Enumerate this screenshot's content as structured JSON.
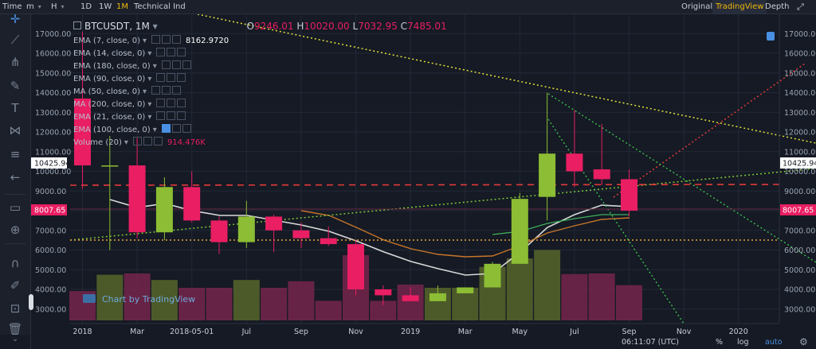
{
  "toolbar": {
    "items": [
      "Time",
      "m",
      "H",
      "1D",
      "1W",
      "1M",
      "Technical Ind"
    ],
    "active": "1M",
    "right": [
      "Original",
      "TradingView",
      "Depth"
    ],
    "right_active": "TradingView"
  },
  "sidebar_icons": [
    "crosshair-icon",
    "trendline-icon",
    "pitchfork-icon",
    "brush-icon",
    "text-icon",
    "pattern-icon",
    "fib-icon",
    "back-arrow-icon",
    "ruler-icon",
    "zoom-icon",
    "magnet-icon",
    "lock-edit-icon",
    "lock-icon",
    "trash-icon"
  ],
  "header": {
    "symbol": "BTCUSDT, 1M",
    "O_label": "O",
    "O": "9246.01",
    "H_label": "H",
    "H": "10020.00",
    "L_label": "L",
    "L": "7032.95",
    "C_label": "C",
    "C": "7485.01"
  },
  "legend": [
    {
      "label": "EMA (7, close, 0)",
      "value": "8162.9720",
      "value_color": "#ffffff"
    },
    {
      "label": "EMA (14, close, 0)",
      "value": ""
    },
    {
      "label": "EMA (180, close, 0)",
      "value": ""
    },
    {
      "label": "EMA (90, close, 0)",
      "value": ""
    },
    {
      "label": "MA (50, close, 0)",
      "value": ""
    },
    {
      "label": "MA (200, close, 0)",
      "value": ""
    },
    {
      "label": "EMA (21, close, 0)",
      "value": ""
    },
    {
      "label": "EMA (100, close, 0)",
      "value": ""
    },
    {
      "label": "Volume (20)",
      "value": "914.476K",
      "value_color": "#e91e63"
    }
  ],
  "watermark": "Chart by TradingView",
  "price_tags": {
    "upper": "10425.94",
    "lower": "8007.65"
  },
  "statusbar": {
    "time": "06:11:07 (UTC)",
    "percent": "%",
    "log": "log",
    "auto": "auto"
  },
  "colors": {
    "up": "#8cbd34",
    "down": "#e91e63",
    "bg": "#151a24",
    "grid": "#222838"
  },
  "chart_data": {
    "type": "candlestick",
    "y_ticks": [
      3000,
      4000,
      5000,
      6000,
      7000,
      8000,
      9000,
      10000,
      11000,
      12000,
      13000,
      14000,
      15000,
      16000,
      17000
    ],
    "x_ticks": [
      "2018",
      "Mar",
      "2018-05-01",
      "Jul",
      "Sep",
      "Nov",
      "2019",
      "Mar",
      "May",
      "Jul",
      "Sep",
      "Nov",
      "2020"
    ],
    "months": [
      "2018-01",
      "2018-02",
      "2018-03",
      "2018-04",
      "2018-05",
      "2018-06",
      "2018-07",
      "2018-08",
      "2018-09",
      "2018-10",
      "2018-11",
      "2018-12",
      "2019-01",
      "2019-02",
      "2019-03",
      "2019-04",
      "2019-05",
      "2019-06",
      "2019-07",
      "2019-08",
      "2019-09"
    ],
    "candles": [
      {
        "o": 13700,
        "h": 17100,
        "l": 9100,
        "c": 10300
      },
      {
        "o": 10300,
        "h": 11800,
        "l": 6000,
        "c": 10300
      },
      {
        "o": 10300,
        "h": 11700,
        "l": 6600,
        "c": 6900
      },
      {
        "o": 6900,
        "h": 9700,
        "l": 6500,
        "c": 9200
      },
      {
        "o": 9200,
        "h": 10000,
        "l": 7400,
        "c": 7500
      },
      {
        "o": 7500,
        "h": 7700,
        "l": 5800,
        "c": 6400
      },
      {
        "o": 6400,
        "h": 8500,
        "l": 6100,
        "c": 7700
      },
      {
        "o": 7700,
        "h": 7800,
        "l": 5900,
        "c": 7000
      },
      {
        "o": 7000,
        "h": 7400,
        "l": 6100,
        "c": 6600
      },
      {
        "o": 6600,
        "h": 7200,
        "l": 6200,
        "c": 6300
      },
      {
        "o": 6300,
        "h": 6500,
        "l": 3700,
        "c": 4000
      },
      {
        "o": 4000,
        "h": 4200,
        "l": 3200,
        "c": 3700
      },
      {
        "o": 3700,
        "h": 4100,
        "l": 3400,
        "c": 3400
      },
      {
        "o": 3400,
        "h": 4200,
        "l": 3400,
        "c": 3800
      },
      {
        "o": 3800,
        "h": 4100,
        "l": 3800,
        "c": 4100
      },
      {
        "o": 4100,
        "h": 5400,
        "l": 4100,
        "c": 5300
      },
      {
        "o": 5300,
        "h": 8900,
        "l": 5300,
        "c": 8600
      },
      {
        "o": 8700,
        "h": 14000,
        "l": 7500,
        "c": 10900
      },
      {
        "o": 10900,
        "h": 13100,
        "l": 9200,
        "c": 10000
      },
      {
        "o": 10100,
        "h": 12400,
        "l": 9300,
        "c": 9600
      },
      {
        "o": 9600,
        "h": 10100,
        "l": 7700,
        "c": 8000
      }
    ],
    "volume_rel": [
      0.45,
      0.7,
      0.72,
      0.62,
      0.5,
      0.5,
      0.62,
      0.5,
      0.6,
      0.3,
      1.0,
      0.3,
      0.55,
      0.5,
      0.5,
      0.82,
      0.95,
      1.08,
      0.71,
      0.72,
      0.54
    ]
  }
}
